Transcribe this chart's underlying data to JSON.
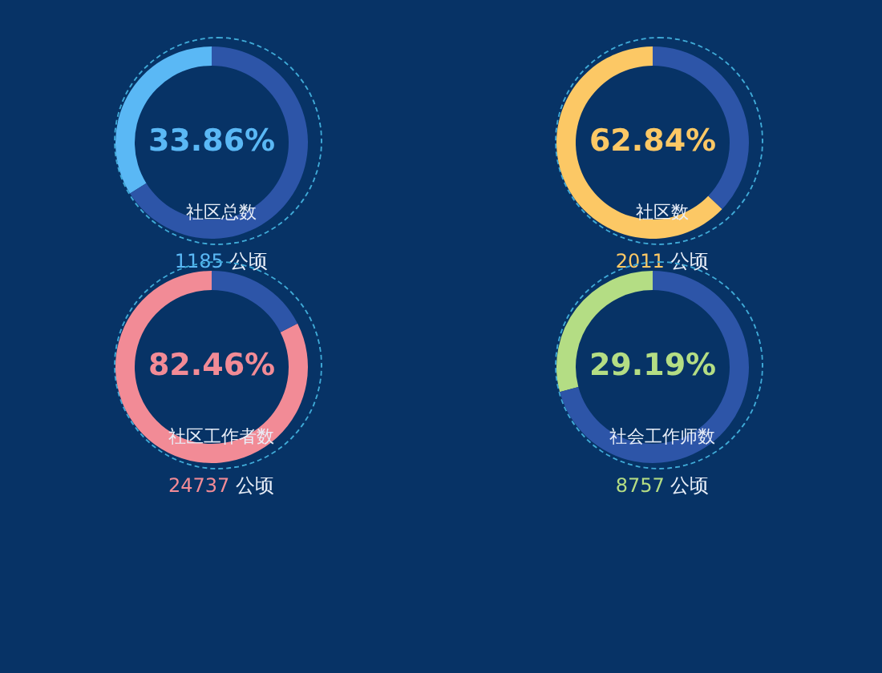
{
  "chart_data": [
    {
      "type": "donut",
      "title": "社区总数",
      "categories": [
        null,
        null
      ],
      "values": [
        33.86,
        66.14
      ],
      "colors": [
        "#5ab8f5",
        "#2d55a8"
      ],
      "value_labels": [
        "33.86%",
        null
      ],
      "annotations": [
        "1185 公顷"
      ],
      "legend": false
    },
    {
      "type": "donut",
      "title": "社区数",
      "categories": [
        null,
        null
      ],
      "values": [
        62.84,
        37.16
      ],
      "colors": [
        "#fcc865",
        "#2d55a8"
      ],
      "value_labels": [
        "62.84%",
        null
      ],
      "annotations": [
        "2011 公顷"
      ],
      "legend": false
    },
    {
      "type": "donut",
      "title": "社区工作者数",
      "categories": [
        null,
        null
      ],
      "values": [
        82.46,
        17.54
      ],
      "colors": [
        "#f28b96",
        "#2d55a8"
      ],
      "value_labels": [
        "82.46%",
        null
      ],
      "annotations": [
        "24737 公顷"
      ],
      "legend": false
    },
    {
      "type": "donut",
      "title": "社会工作师数",
      "categories": [
        null,
        null
      ],
      "values": [
        29.19,
        70.81
      ],
      "colors": [
        "#b4dd84",
        "#2d55a8"
      ],
      "value_labels": [
        "29.19%",
        null
      ],
      "annotations": [
        "8757 公顷"
      ],
      "legend": false
    }
  ]
}
